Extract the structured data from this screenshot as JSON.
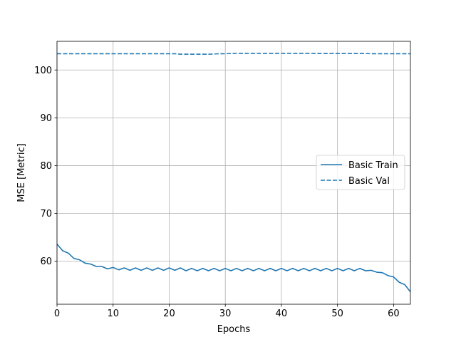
{
  "chart_data": {
    "type": "line",
    "title": "",
    "xlabel": "Epochs",
    "ylabel": "MSE [Metric]",
    "xlim": [
      0,
      63
    ],
    "ylim": [
      51.0,
      106.0
    ],
    "xticks": [
      0,
      10,
      20,
      30,
      40,
      50,
      60
    ],
    "yticks": [
      60,
      70,
      80,
      90,
      100
    ],
    "grid": true,
    "legend": {
      "placement": "center-right"
    },
    "colors": {
      "series": "#1f77b4",
      "grid": "#b0b0b0",
      "axes": "#000000"
    },
    "x": [
      0,
      1,
      2,
      3,
      4,
      5,
      6,
      7,
      8,
      9,
      10,
      11,
      12,
      13,
      14,
      15,
      16,
      17,
      18,
      19,
      20,
      21,
      22,
      23,
      24,
      25,
      26,
      27,
      28,
      29,
      30,
      31,
      32,
      33,
      34,
      35,
      36,
      37,
      38,
      39,
      40,
      41,
      42,
      43,
      44,
      45,
      46,
      47,
      48,
      49,
      50,
      51,
      52,
      53,
      54,
      55,
      56,
      57,
      58,
      59,
      60,
      61,
      62,
      63
    ],
    "series": [
      {
        "name": "Basic Train",
        "style": "solid",
        "values": [
          63.6,
          62.2,
          61.7,
          60.6,
          60.3,
          59.6,
          59.4,
          58.9,
          58.9,
          58.4,
          58.7,
          58.2,
          58.6,
          58.1,
          58.6,
          58.1,
          58.6,
          58.1,
          58.6,
          58.1,
          58.6,
          58.1,
          58.6,
          58.0,
          58.5,
          58.0,
          58.5,
          58.0,
          58.5,
          58.0,
          58.5,
          58.0,
          58.5,
          58.0,
          58.5,
          58.0,
          58.5,
          58.0,
          58.5,
          58.0,
          58.5,
          58.0,
          58.5,
          58.0,
          58.5,
          58.0,
          58.5,
          58.0,
          58.5,
          58.0,
          58.5,
          58.0,
          58.5,
          58.0,
          58.5,
          58.0,
          58.1,
          57.7,
          57.6,
          57.0,
          56.7,
          55.6,
          55.1,
          53.6
        ]
      },
      {
        "name": "Basic Val",
        "style": "dashed",
        "values": [
          103.4,
          103.4,
          103.4,
          103.4,
          103.4,
          103.4,
          103.4,
          103.4,
          103.4,
          103.4,
          103.4,
          103.4,
          103.4,
          103.4,
          103.4,
          103.4,
          103.4,
          103.4,
          103.4,
          103.4,
          103.4,
          103.4,
          103.3,
          103.3,
          103.3,
          103.3,
          103.3,
          103.3,
          103.35,
          103.4,
          103.4,
          103.45,
          103.5,
          103.5,
          103.5,
          103.5,
          103.5,
          103.5,
          103.5,
          103.5,
          103.5,
          103.5,
          103.5,
          103.5,
          103.5,
          103.5,
          103.45,
          103.45,
          103.45,
          103.45,
          103.45,
          103.45,
          103.45,
          103.45,
          103.45,
          103.45,
          103.4,
          103.4,
          103.4,
          103.4,
          103.4,
          103.4,
          103.4,
          103.4
        ]
      }
    ]
  }
}
